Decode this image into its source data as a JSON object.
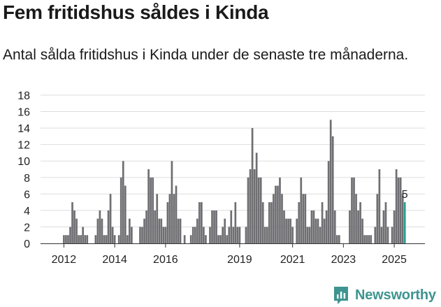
{
  "title": "Fem fritidshus såldes i Kinda",
  "subtitle": "Antal sålda fritidshus i Kinda under de senaste tre månaderna.",
  "brand": {
    "name": "Newsworthy",
    "icon": "newsworthy-logo-icon"
  },
  "colors": {
    "bar": "#6f6f73",
    "highlight": "#2a9d92",
    "grid": "#dddddd",
    "brand": "#3e9490"
  },
  "chart_data": {
    "type": "bar",
    "title": "Fem fritidshus såldes i Kinda",
    "xlabel": "",
    "ylabel": "",
    "ylim": [
      0,
      18
    ],
    "yticks": [
      0,
      2,
      4,
      6,
      8,
      10,
      12,
      14,
      16,
      18
    ],
    "xticks": [
      "2012",
      "2014",
      "2016",
      "2019",
      "2021",
      "2023",
      "2025"
    ],
    "xtick_index": [
      2,
      26,
      50,
      85,
      110,
      134,
      158
    ],
    "values": [
      0,
      0,
      1,
      1,
      1,
      2,
      5,
      4,
      3,
      1,
      1,
      2,
      1,
      1,
      0,
      0,
      0,
      1,
      3,
      4,
      3,
      1,
      1,
      4,
      6,
      2,
      1,
      0,
      1,
      8,
      10,
      7,
      1,
      3,
      2,
      0,
      0,
      0,
      2,
      2,
      3,
      4,
      9,
      8,
      8,
      4,
      6,
      3,
      3,
      2,
      2,
      5,
      6,
      10,
      6,
      7,
      3,
      3,
      0,
      1,
      0,
      0,
      1,
      2,
      2,
      3,
      5,
      5,
      2,
      1,
      0,
      2,
      4,
      4,
      4,
      1,
      1,
      2,
      3,
      1,
      2,
      4,
      2,
      5,
      2,
      2,
      0,
      0,
      2,
      8,
      9,
      14,
      9,
      11,
      8,
      8,
      5,
      2,
      2,
      5,
      5,
      6,
      7,
      7,
      8,
      6,
      4,
      3,
      3,
      3,
      2,
      0,
      3,
      5,
      8,
      6,
      6,
      2,
      2,
      4,
      4,
      3,
      3,
      2,
      5,
      3,
      4,
      10,
      15,
      13,
      4,
      1,
      1,
      0,
      0,
      0,
      0,
      4,
      8,
      8,
      6,
      4,
      5,
      3,
      1,
      1,
      1,
      1,
      0,
      2,
      6,
      9,
      2,
      4,
      5,
      2,
      0,
      2,
      4,
      9,
      8,
      8,
      6,
      5
    ],
    "last_value_label": "5",
    "highlight_last": true
  }
}
